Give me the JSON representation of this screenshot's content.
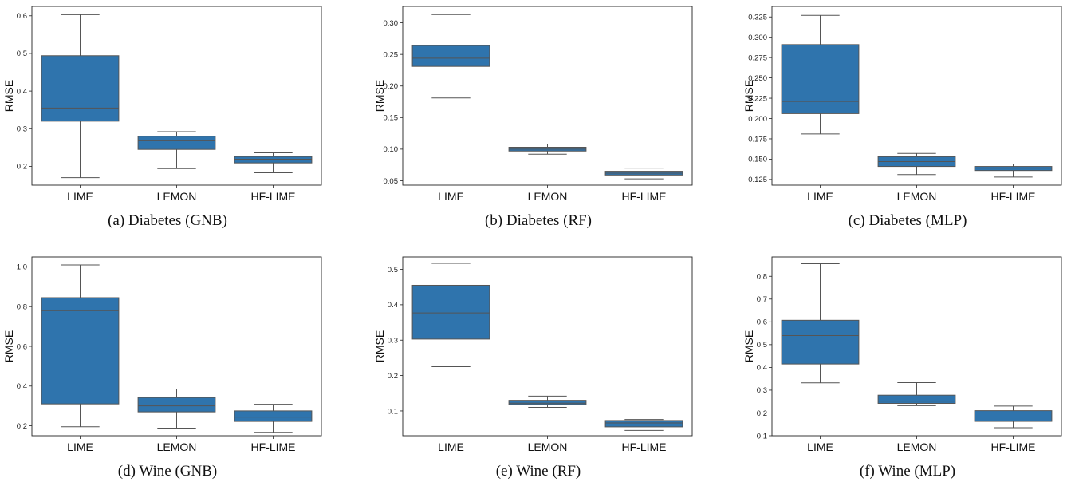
{
  "box_color": "#2f74ad",
  "line_color": "#555555",
  "chart_data": [
    {
      "type": "box",
      "caption": "(a) Diabetes (GNB)",
      "ylabel": "RMSE",
      "categories": [
        "LIME",
        "LEMON",
        "HF-LIME"
      ],
      "ylim": [
        0.15,
        0.625
      ],
      "yticks": [
        0.2,
        0.3,
        0.4,
        0.5,
        0.6
      ],
      "yticklabels": [
        "0.2",
        "0.3",
        "0.4",
        "0.5",
        "0.6"
      ],
      "boxes": [
        {
          "min": 0.17,
          "q1": 0.32,
          "median": 0.355,
          "q3": 0.494,
          "max": 0.603
        },
        {
          "min": 0.194,
          "q1": 0.245,
          "median": 0.268,
          "q3": 0.28,
          "max": 0.292
        },
        {
          "min": 0.183,
          "q1": 0.209,
          "median": 0.219,
          "q3": 0.226,
          "max": 0.236
        }
      ]
    },
    {
      "type": "box",
      "caption": "(b) Diabetes (RF)",
      "ylabel": "RMSE",
      "categories": [
        "LIME",
        "LEMON",
        "HF-LIME"
      ],
      "ylim": [
        0.043,
        0.326
      ],
      "yticks": [
        0.05,
        0.1,
        0.15,
        0.2,
        0.25,
        0.3
      ],
      "yticklabels": [
        "0.05",
        "0.10",
        "0.15",
        "0.20",
        "0.25",
        "0.30"
      ],
      "boxes": [
        {
          "min": 0.181,
          "q1": 0.231,
          "median": 0.244,
          "q3": 0.264,
          "max": 0.313
        },
        {
          "min": 0.092,
          "q1": 0.097,
          "median": 0.1,
          "q3": 0.103,
          "max": 0.108
        },
        {
          "min": 0.053,
          "q1": 0.059,
          "median": 0.062,
          "q3": 0.065,
          "max": 0.07
        }
      ]
    },
    {
      "type": "box",
      "caption": "(c) Diabetes (MLP)",
      "ylabel": "RMSE",
      "categories": [
        "LIME",
        "LEMON",
        "HF-LIME"
      ],
      "ylim": [
        0.118,
        0.338
      ],
      "yticks": [
        0.125,
        0.15,
        0.175,
        0.2,
        0.225,
        0.25,
        0.275,
        0.3,
        0.325
      ],
      "yticklabels": [
        "0.125",
        "0.150",
        "0.175",
        "0.200",
        "0.225",
        "0.250",
        "0.275",
        "0.300",
        "0.325"
      ],
      "boxes": [
        {
          "min": 0.181,
          "q1": 0.206,
          "median": 0.221,
          "q3": 0.291,
          "max": 0.327
        },
        {
          "min": 0.131,
          "q1": 0.141,
          "median": 0.147,
          "q3": 0.153,
          "max": 0.157
        },
        {
          "min": 0.128,
          "q1": 0.136,
          "median": 0.139,
          "q3": 0.141,
          "max": 0.144
        }
      ]
    },
    {
      "type": "box",
      "caption": "(d) Wine (GNB)",
      "ylabel": "RMSE",
      "categories": [
        "LIME",
        "LEMON",
        "HF-LIME"
      ],
      "ylim": [
        0.15,
        1.05
      ],
      "yticks": [
        0.2,
        0.4,
        0.6,
        0.8,
        1.0
      ],
      "yticklabels": [
        "0.2",
        "0.4",
        "0.6",
        "0.8",
        "1.0"
      ],
      "boxes": [
        {
          "min": 0.195,
          "q1": 0.31,
          "median": 0.78,
          "q3": 0.845,
          "max": 1.01
        },
        {
          "min": 0.188,
          "q1": 0.27,
          "median": 0.3,
          "q3": 0.342,
          "max": 0.385
        },
        {
          "min": 0.167,
          "q1": 0.222,
          "median": 0.244,
          "q3": 0.275,
          "max": 0.308
        }
      ]
    },
    {
      "type": "box",
      "caption": "(e) Wine (RF)",
      "ylabel": "RMSE",
      "categories": [
        "LIME",
        "LEMON",
        "HF-LIME"
      ],
      "ylim": [
        0.03,
        0.535
      ],
      "yticks": [
        0.1,
        0.2,
        0.3,
        0.4,
        0.5
      ],
      "yticklabels": [
        "0.1",
        "0.2",
        "0.3",
        "0.4",
        "0.5"
      ],
      "boxes": [
        {
          "min": 0.225,
          "q1": 0.303,
          "median": 0.377,
          "q3": 0.455,
          "max": 0.517
        },
        {
          "min": 0.11,
          "q1": 0.118,
          "median": 0.122,
          "q3": 0.13,
          "max": 0.142
        },
        {
          "min": 0.045,
          "q1": 0.055,
          "median": 0.066,
          "q3": 0.073,
          "max": 0.076
        }
      ]
    },
    {
      "type": "box",
      "caption": "(f) Wine (MLP)",
      "ylabel": "RMSE",
      "categories": [
        "LIME",
        "LEMON",
        "HF-LIME"
      ],
      "ylim": [
        0.1,
        0.885
      ],
      "yticks": [
        0.1,
        0.2,
        0.3,
        0.4,
        0.5,
        0.6,
        0.7,
        0.8
      ],
      "yticklabels": [
        "0.1",
        "0.2",
        "0.3",
        "0.4",
        "0.5",
        "0.6",
        "0.7",
        "0.8"
      ],
      "boxes": [
        {
          "min": 0.332,
          "q1": 0.415,
          "median": 0.54,
          "q3": 0.607,
          "max": 0.855
        },
        {
          "min": 0.232,
          "q1": 0.242,
          "median": 0.252,
          "q3": 0.278,
          "max": 0.333
        },
        {
          "min": 0.135,
          "q1": 0.163,
          "median": 0.165,
          "q3": 0.21,
          "max": 0.23
        }
      ]
    }
  ]
}
